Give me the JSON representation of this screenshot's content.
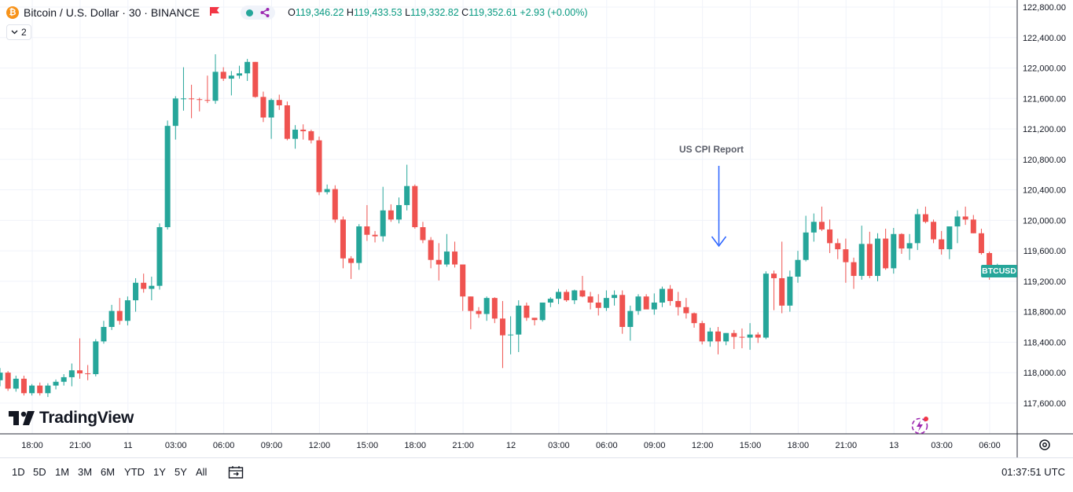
{
  "legend": {
    "coin_glyph": "₿",
    "symbol_title": "Bitcoin / U.S. Dollar · 30 · BINANCE",
    "open_label": "O",
    "open_value": "119,346.22",
    "high_label": "H",
    "high_value": "119,433.53",
    "low_label": "L",
    "low_value": "119,332.82",
    "close_label": "C",
    "close_value": "119,352.61",
    "change": "+2.93 (+0.00%)"
  },
  "collapse_button": {
    "label": "2"
  },
  "logo": {
    "text": "TradingView"
  },
  "price_badge": {
    "label": "BTCUSD"
  },
  "annotation": {
    "label": "US CPI Report"
  },
  "time_ranges": [
    "1D",
    "5D",
    "1M",
    "3M",
    "6M",
    "YTD",
    "1Y",
    "5Y",
    "All"
  ],
  "clock": "01:37:51 UTC",
  "colors": {
    "up": "#26a69a",
    "down": "#ef5350",
    "grid": "#f0f3fa",
    "text": "#131722",
    "annotation_arrow": "#2962ff"
  },
  "icons": [
    "bitcoin-icon",
    "flag-icon",
    "eye-icon",
    "share-icon",
    "chevron-down-icon",
    "calendar-goto-icon",
    "gear-icon",
    "lightning-icon"
  ],
  "chart_data": {
    "type": "candlestick",
    "title": "Bitcoin / U.S. Dollar · 30 · BINANCE",
    "y_ticks": [
      117600,
      118000,
      118400,
      118800,
      119200,
      119600,
      120000,
      120400,
      120800,
      121200,
      121600,
      122000,
      122400,
      122800
    ],
    "y_tick_labels": [
      "117,600.00",
      "118,000.00",
      "118,400.00",
      "118,800.00",
      "119,200.00",
      "119,600.00",
      "120,000.00",
      "120,400.00",
      "120,800.00",
      "121,200.00",
      "121,600.00",
      "122,000.00",
      "122,400.00",
      "122,800.00"
    ],
    "ylim": [
      117200,
      122900
    ],
    "x_tick_labels": [
      "18:00",
      "21:00",
      "11",
      "03:00",
      "06:00",
      "09:00",
      "12:00",
      "15:00",
      "18:00",
      "21:00",
      "12",
      "03:00",
      "06:00",
      "09:00",
      "12:00",
      "15:00",
      "18:00",
      "21:00",
      "13",
      "03:00",
      "06:00"
    ],
    "grid": true,
    "annotations": [
      {
        "text": "US CPI Report",
        "type": "arrow-down",
        "candle_index": 90
      }
    ],
    "candles": [
      {
        "o": 117900,
        "h": 118060,
        "l": 117820,
        "c": 118000
      },
      {
        "o": 118000,
        "h": 118020,
        "l": 117760,
        "c": 117790
      },
      {
        "o": 117790,
        "h": 117960,
        "l": 117750,
        "c": 117920
      },
      {
        "o": 117920,
        "h": 117960,
        "l": 117700,
        "c": 117730
      },
      {
        "o": 117730,
        "h": 117850,
        "l": 117700,
        "c": 117830
      },
      {
        "o": 117830,
        "h": 117870,
        "l": 117700,
        "c": 117730
      },
      {
        "o": 117730,
        "h": 117860,
        "l": 117680,
        "c": 117830
      },
      {
        "o": 117830,
        "h": 117910,
        "l": 117780,
        "c": 117880
      },
      {
        "o": 117880,
        "h": 117980,
        "l": 117830,
        "c": 117940
      },
      {
        "o": 117940,
        "h": 118120,
        "l": 117820,
        "c": 118030
      },
      {
        "o": 118030,
        "h": 118450,
        "l": 117920,
        "c": 117990
      },
      {
        "o": 117990,
        "h": 118100,
        "l": 117900,
        "c": 117980
      },
      {
        "o": 117980,
        "h": 118440,
        "l": 117950,
        "c": 118410
      },
      {
        "o": 118410,
        "h": 118680,
        "l": 118380,
        "c": 118600
      },
      {
        "o": 118600,
        "h": 118890,
        "l": 118560,
        "c": 118810
      },
      {
        "o": 118810,
        "h": 118980,
        "l": 118630,
        "c": 118680
      },
      {
        "o": 118680,
        "h": 119000,
        "l": 118620,
        "c": 118950
      },
      {
        "o": 118950,
        "h": 119240,
        "l": 118800,
        "c": 119180
      },
      {
        "o": 119180,
        "h": 119300,
        "l": 119050,
        "c": 119100
      },
      {
        "o": 119100,
        "h": 119260,
        "l": 118950,
        "c": 119140
      },
      {
        "o": 119140,
        "h": 119960,
        "l": 119090,
        "c": 119910
      },
      {
        "o": 119910,
        "h": 121310,
        "l": 119880,
        "c": 121240
      },
      {
        "o": 121240,
        "h": 121630,
        "l": 121060,
        "c": 121600
      },
      {
        "o": 121600,
        "h": 122010,
        "l": 121440,
        "c": 121600
      },
      {
        "o": 121600,
        "h": 121780,
        "l": 121340,
        "c": 121590
      },
      {
        "o": 121590,
        "h": 121610,
        "l": 121430,
        "c": 121580
      },
      {
        "o": 121580,
        "h": 121900,
        "l": 121540,
        "c": 121570
      },
      {
        "o": 121570,
        "h": 122180,
        "l": 121530,
        "c": 121950
      },
      {
        "o": 121950,
        "h": 122010,
        "l": 121830,
        "c": 121860
      },
      {
        "o": 121860,
        "h": 121960,
        "l": 121640,
        "c": 121900
      },
      {
        "o": 121900,
        "h": 122030,
        "l": 121860,
        "c": 121930
      },
      {
        "o": 121930,
        "h": 122120,
        "l": 121830,
        "c": 122080
      },
      {
        "o": 122080,
        "h": 122080,
        "l": 121610,
        "c": 121620
      },
      {
        "o": 121620,
        "h": 121690,
        "l": 121290,
        "c": 121350
      },
      {
        "o": 121350,
        "h": 121600,
        "l": 121070,
        "c": 121580
      },
      {
        "o": 121580,
        "h": 121650,
        "l": 121450,
        "c": 121510
      },
      {
        "o": 121510,
        "h": 121560,
        "l": 121050,
        "c": 121070
      },
      {
        "o": 121070,
        "h": 121250,
        "l": 120940,
        "c": 121190
      },
      {
        "o": 121190,
        "h": 121260,
        "l": 121060,
        "c": 121170
      },
      {
        "o": 121170,
        "h": 121190,
        "l": 121010,
        "c": 121050
      },
      {
        "o": 121050,
        "h": 121100,
        "l": 120330,
        "c": 120370
      },
      {
        "o": 120370,
        "h": 120470,
        "l": 120340,
        "c": 120410
      },
      {
        "o": 120410,
        "h": 120460,
        "l": 119970,
        "c": 120010
      },
      {
        "o": 120010,
        "h": 120050,
        "l": 119370,
        "c": 119500
      },
      {
        "o": 119500,
        "h": 119530,
        "l": 119230,
        "c": 119440
      },
      {
        "o": 119440,
        "h": 119950,
        "l": 119350,
        "c": 119920
      },
      {
        "o": 119920,
        "h": 120200,
        "l": 119730,
        "c": 119810
      },
      {
        "o": 119810,
        "h": 119860,
        "l": 119710,
        "c": 119790
      },
      {
        "o": 119790,
        "h": 120440,
        "l": 119720,
        "c": 120130
      },
      {
        "o": 120130,
        "h": 120210,
        "l": 119980,
        "c": 120010
      },
      {
        "o": 120010,
        "h": 120300,
        "l": 119960,
        "c": 120200
      },
      {
        "o": 120200,
        "h": 120730,
        "l": 120130,
        "c": 120450
      },
      {
        "o": 120450,
        "h": 120470,
        "l": 119890,
        "c": 119910
      },
      {
        "o": 119910,
        "h": 119980,
        "l": 119700,
        "c": 119740
      },
      {
        "o": 119740,
        "h": 119780,
        "l": 119370,
        "c": 119480
      },
      {
        "o": 119480,
        "h": 119700,
        "l": 119210,
        "c": 119420
      },
      {
        "o": 119420,
        "h": 119820,
        "l": 119390,
        "c": 119590
      },
      {
        "o": 119590,
        "h": 119720,
        "l": 119380,
        "c": 119420
      },
      {
        "o": 119420,
        "h": 119420,
        "l": 118810,
        "c": 119000
      },
      {
        "o": 119000,
        "h": 119000,
        "l": 118570,
        "c": 118810
      },
      {
        "o": 118810,
        "h": 118860,
        "l": 118720,
        "c": 118770
      },
      {
        "o": 118770,
        "h": 119000,
        "l": 118680,
        "c": 118980
      },
      {
        "o": 118980,
        "h": 118990,
        "l": 118650,
        "c": 118710
      },
      {
        "o": 118710,
        "h": 118940,
        "l": 118060,
        "c": 118490
      },
      {
        "o": 118490,
        "h": 118740,
        "l": 118240,
        "c": 118500
      },
      {
        "o": 118500,
        "h": 118950,
        "l": 118270,
        "c": 118880
      },
      {
        "o": 118880,
        "h": 118920,
        "l": 118680,
        "c": 118720
      },
      {
        "o": 118720,
        "h": 118720,
        "l": 118620,
        "c": 118690
      },
      {
        "o": 118690,
        "h": 118880,
        "l": 118670,
        "c": 118920
      },
      {
        "o": 118920,
        "h": 118990,
        "l": 118860,
        "c": 118970
      },
      {
        "o": 118970,
        "h": 119100,
        "l": 118900,
        "c": 119060
      },
      {
        "o": 119060,
        "h": 119090,
        "l": 118930,
        "c": 118950
      },
      {
        "o": 118950,
        "h": 119090,
        "l": 118900,
        "c": 119080
      },
      {
        "o": 119080,
        "h": 119270,
        "l": 118990,
        "c": 119000
      },
      {
        "o": 119000,
        "h": 119060,
        "l": 118830,
        "c": 118920
      },
      {
        "o": 118920,
        "h": 119030,
        "l": 118750,
        "c": 118850
      },
      {
        "o": 118850,
        "h": 119080,
        "l": 118810,
        "c": 118980
      },
      {
        "o": 118980,
        "h": 119080,
        "l": 118880,
        "c": 119020
      },
      {
        "o": 119020,
        "h": 119080,
        "l": 118510,
        "c": 118600
      },
      {
        "o": 118600,
        "h": 118880,
        "l": 118420,
        "c": 118810
      },
      {
        "o": 118810,
        "h": 119030,
        "l": 118760,
        "c": 119000
      },
      {
        "o": 119000,
        "h": 119030,
        "l": 118840,
        "c": 118830
      },
      {
        "o": 118830,
        "h": 119040,
        "l": 118760,
        "c": 118920
      },
      {
        "o": 118920,
        "h": 119130,
        "l": 118860,
        "c": 119100
      },
      {
        "o": 119100,
        "h": 119150,
        "l": 118880,
        "c": 118940
      },
      {
        "o": 118940,
        "h": 119060,
        "l": 118750,
        "c": 118860
      },
      {
        "o": 118860,
        "h": 118980,
        "l": 118710,
        "c": 118780
      },
      {
        "o": 118780,
        "h": 118790,
        "l": 118590,
        "c": 118650
      },
      {
        "o": 118650,
        "h": 118680,
        "l": 118370,
        "c": 118410
      },
      {
        "o": 118410,
        "h": 118590,
        "l": 118340,
        "c": 118540
      },
      {
        "o": 118540,
        "h": 118600,
        "l": 118240,
        "c": 118410
      },
      {
        "o": 118410,
        "h": 118520,
        "l": 118360,
        "c": 118520
      },
      {
        "o": 118520,
        "h": 118560,
        "l": 118310,
        "c": 118470
      },
      {
        "o": 118470,
        "h": 118580,
        "l": 118320,
        "c": 118460
      },
      {
        "o": 118460,
        "h": 118650,
        "l": 118300,
        "c": 118500
      },
      {
        "o": 118500,
        "h": 118530,
        "l": 118390,
        "c": 118460
      },
      {
        "o": 118460,
        "h": 119330,
        "l": 118440,
        "c": 119300
      },
      {
        "o": 119300,
        "h": 119340,
        "l": 118820,
        "c": 119240
      },
      {
        "o": 119240,
        "h": 119720,
        "l": 118780,
        "c": 118880
      },
      {
        "o": 118880,
        "h": 119340,
        "l": 118800,
        "c": 119260
      },
      {
        "o": 119260,
        "h": 119600,
        "l": 119180,
        "c": 119480
      },
      {
        "o": 119480,
        "h": 120060,
        "l": 119460,
        "c": 119840
      },
      {
        "o": 119840,
        "h": 120090,
        "l": 119720,
        "c": 119980
      },
      {
        "o": 119980,
        "h": 120180,
        "l": 119860,
        "c": 119880
      },
      {
        "o": 119880,
        "h": 120010,
        "l": 119570,
        "c": 119700
      },
      {
        "o": 119700,
        "h": 119760,
        "l": 119490,
        "c": 119620
      },
      {
        "o": 119620,
        "h": 119760,
        "l": 119180,
        "c": 119450
      },
      {
        "o": 119450,
        "h": 119510,
        "l": 119100,
        "c": 119270
      },
      {
        "o": 119270,
        "h": 119930,
        "l": 119220,
        "c": 119690
      },
      {
        "o": 119690,
        "h": 119850,
        "l": 119240,
        "c": 119270
      },
      {
        "o": 119270,
        "h": 119830,
        "l": 119200,
        "c": 119760
      },
      {
        "o": 119760,
        "h": 119890,
        "l": 119350,
        "c": 119370
      },
      {
        "o": 119370,
        "h": 119900,
        "l": 119300,
        "c": 119820
      },
      {
        "o": 119820,
        "h": 119830,
        "l": 119560,
        "c": 119630
      },
      {
        "o": 119630,
        "h": 119820,
        "l": 119480,
        "c": 119700
      },
      {
        "o": 119700,
        "h": 120150,
        "l": 119610,
        "c": 120080
      },
      {
        "o": 120080,
        "h": 120180,
        "l": 119960,
        "c": 119980
      },
      {
        "o": 119980,
        "h": 120010,
        "l": 119700,
        "c": 119750
      },
      {
        "o": 119750,
        "h": 119860,
        "l": 119550,
        "c": 119620
      },
      {
        "o": 119620,
        "h": 119880,
        "l": 119490,
        "c": 119920
      },
      {
        "o": 119920,
        "h": 120130,
        "l": 119700,
        "c": 120050
      },
      {
        "o": 120050,
        "h": 120180,
        "l": 119940,
        "c": 120010
      },
      {
        "o": 120010,
        "h": 120070,
        "l": 119830,
        "c": 119830
      },
      {
        "o": 119830,
        "h": 119890,
        "l": 119550,
        "c": 119570
      },
      {
        "o": 119570,
        "h": 119590,
        "l": 119220,
        "c": 119350
      },
      {
        "o": 119350,
        "h": 119430,
        "l": 119330,
        "c": 119350
      }
    ]
  }
}
